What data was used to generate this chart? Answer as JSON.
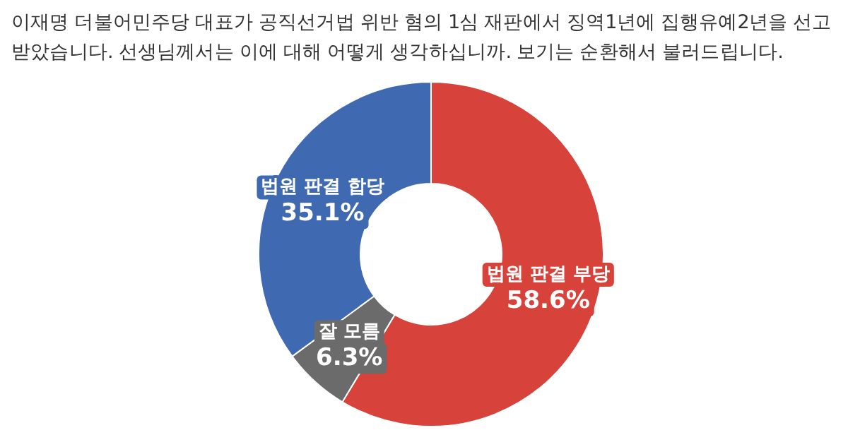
{
  "chart_data": {
    "type": "donut",
    "title": "이재명 더불어민주당 대표가 공직선거법 위반 혐의 1심 재판에서 징역1년에 집행유예2년을 선고 받았습니다. 선생님께서는 이에 대해 어떻게 생각하십니까. 보기는 순환해서 불러드립니다.",
    "categories": [
      "법원 판결 부당",
      "잘 모름",
      "법원 판결 합당"
    ],
    "values": [
      58.6,
      6.3,
      35.1
    ],
    "colors": [
      "#d7423a",
      "#6b6b6b",
      "#3f69b0"
    ],
    "value_labels": [
      "58.6%",
      "6.3%",
      "35.1%"
    ]
  }
}
